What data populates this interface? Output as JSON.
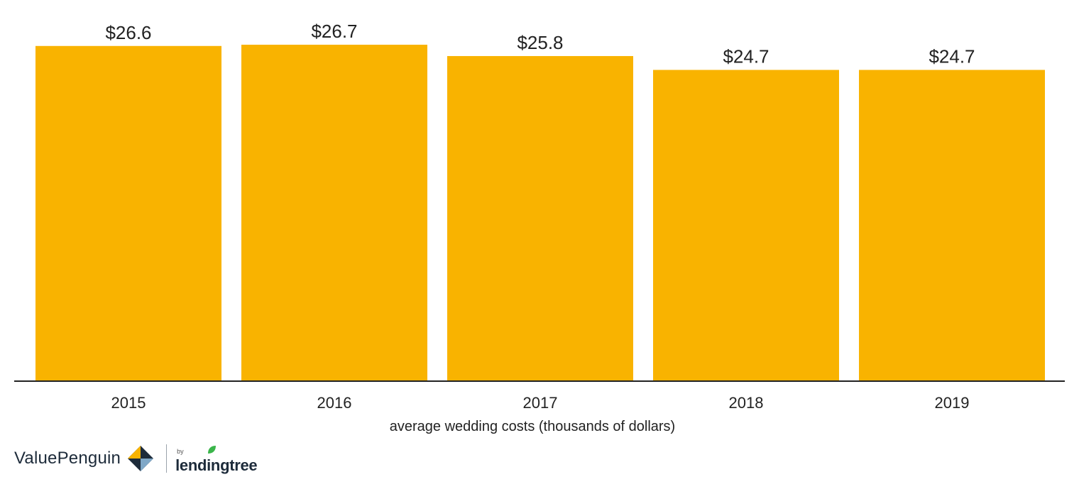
{
  "chart_data": {
    "type": "bar",
    "categories": [
      "2015",
      "2016",
      "2017",
      "2018",
      "2019"
    ],
    "values": [
      26.6,
      26.7,
      25.8,
      24.7,
      24.7
    ],
    "data_labels": [
      "$26.6",
      "$26.7",
      "$25.8",
      "$24.7",
      "$24.7"
    ],
    "xlabel": "average wedding costs (thousands of dollars)",
    "ylabel": "",
    "ylim": [
      0,
      26.7
    ],
    "grid": false,
    "colors": {
      "bar": "#F9B300",
      "axis": "#222222"
    }
  },
  "branding": {
    "valuepenguin": "ValuePenguin",
    "by": "by",
    "lendingtree": "lendingtree",
    "colors": {
      "navy": "#1d2b3a",
      "gold": "#F9B300",
      "green": "#3ab54a"
    }
  }
}
